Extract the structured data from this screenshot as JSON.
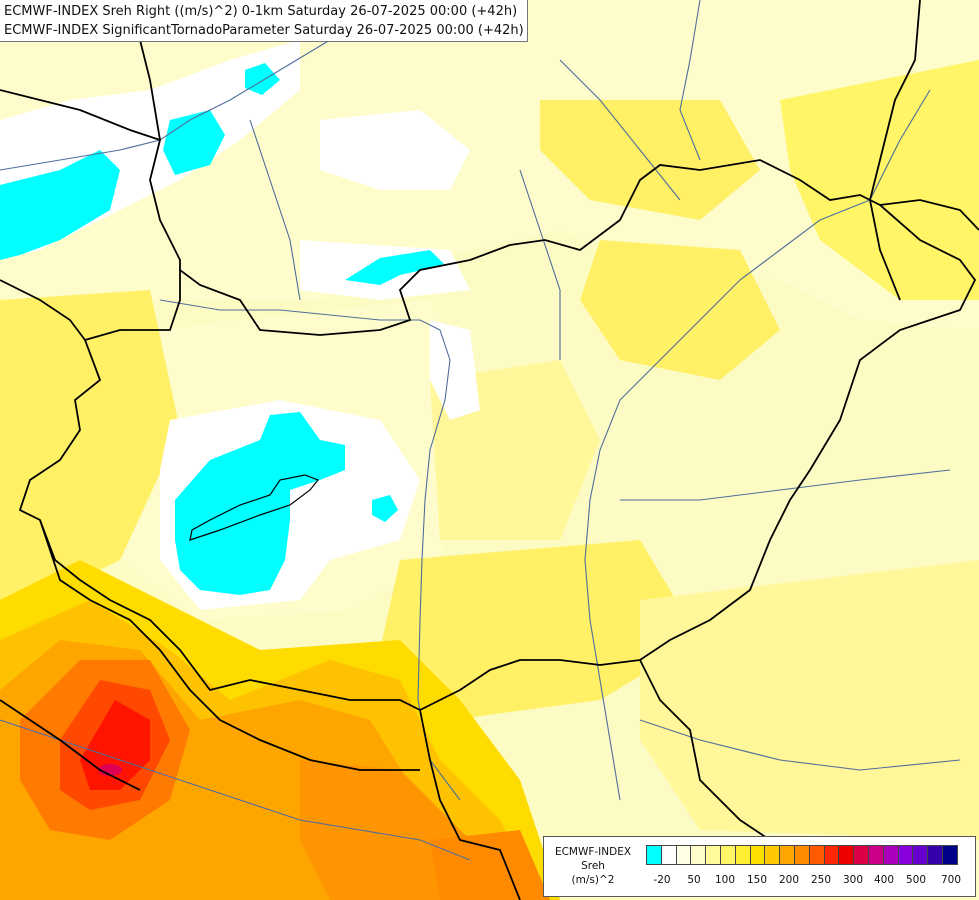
{
  "header": {
    "line1": "ECMWF-INDEX Sreh Right ((m/s)^2) 0-1km Saturday 26-07-2025 00:00 (+42h)",
    "line2": "ECMWF-INDEX SignificantTornadoParameter Saturday 26-07-2025 00:00 (+42h)"
  },
  "legend": {
    "model": "ECMWF-INDEX",
    "variable": "Sreh",
    "unit": "(m/s)^2",
    "tick_labels": [
      "-20",
      "50",
      "100",
      "150",
      "200",
      "250",
      "300",
      "400",
      "500",
      "700"
    ],
    "colors": [
      "#00ffff",
      "#ffffff",
      "#ffffe6",
      "#fffccc",
      "#fffa9a",
      "#fff566",
      "#ffed33",
      "#ffe000",
      "#ffc800",
      "#ffa500",
      "#ff8a00",
      "#ff5a00",
      "#ff2800",
      "#ee0000",
      "#dd0044",
      "#cc0088",
      "#aa00bb",
      "#8800dd",
      "#6600cc",
      "#3300aa",
      "#000088"
    ]
  },
  "map": {
    "background_color": "#fdfbc4",
    "fill_colors": {
      "cyan": "#00ffff",
      "white": "#ffffff",
      "pale": "#fffccc",
      "light_yellow": "#fff799",
      "yellow": "#fff066",
      "gold": "#ffdc00",
      "orange_light": "#ffc200",
      "orange": "#ffa500",
      "orange_dark": "#ff7a00",
      "red_orange": "#ff4800",
      "red": "#ff1400",
      "magenta": "#dd0055"
    },
    "border_color": "#000000",
    "river_color": "#4d6e9b"
  }
}
